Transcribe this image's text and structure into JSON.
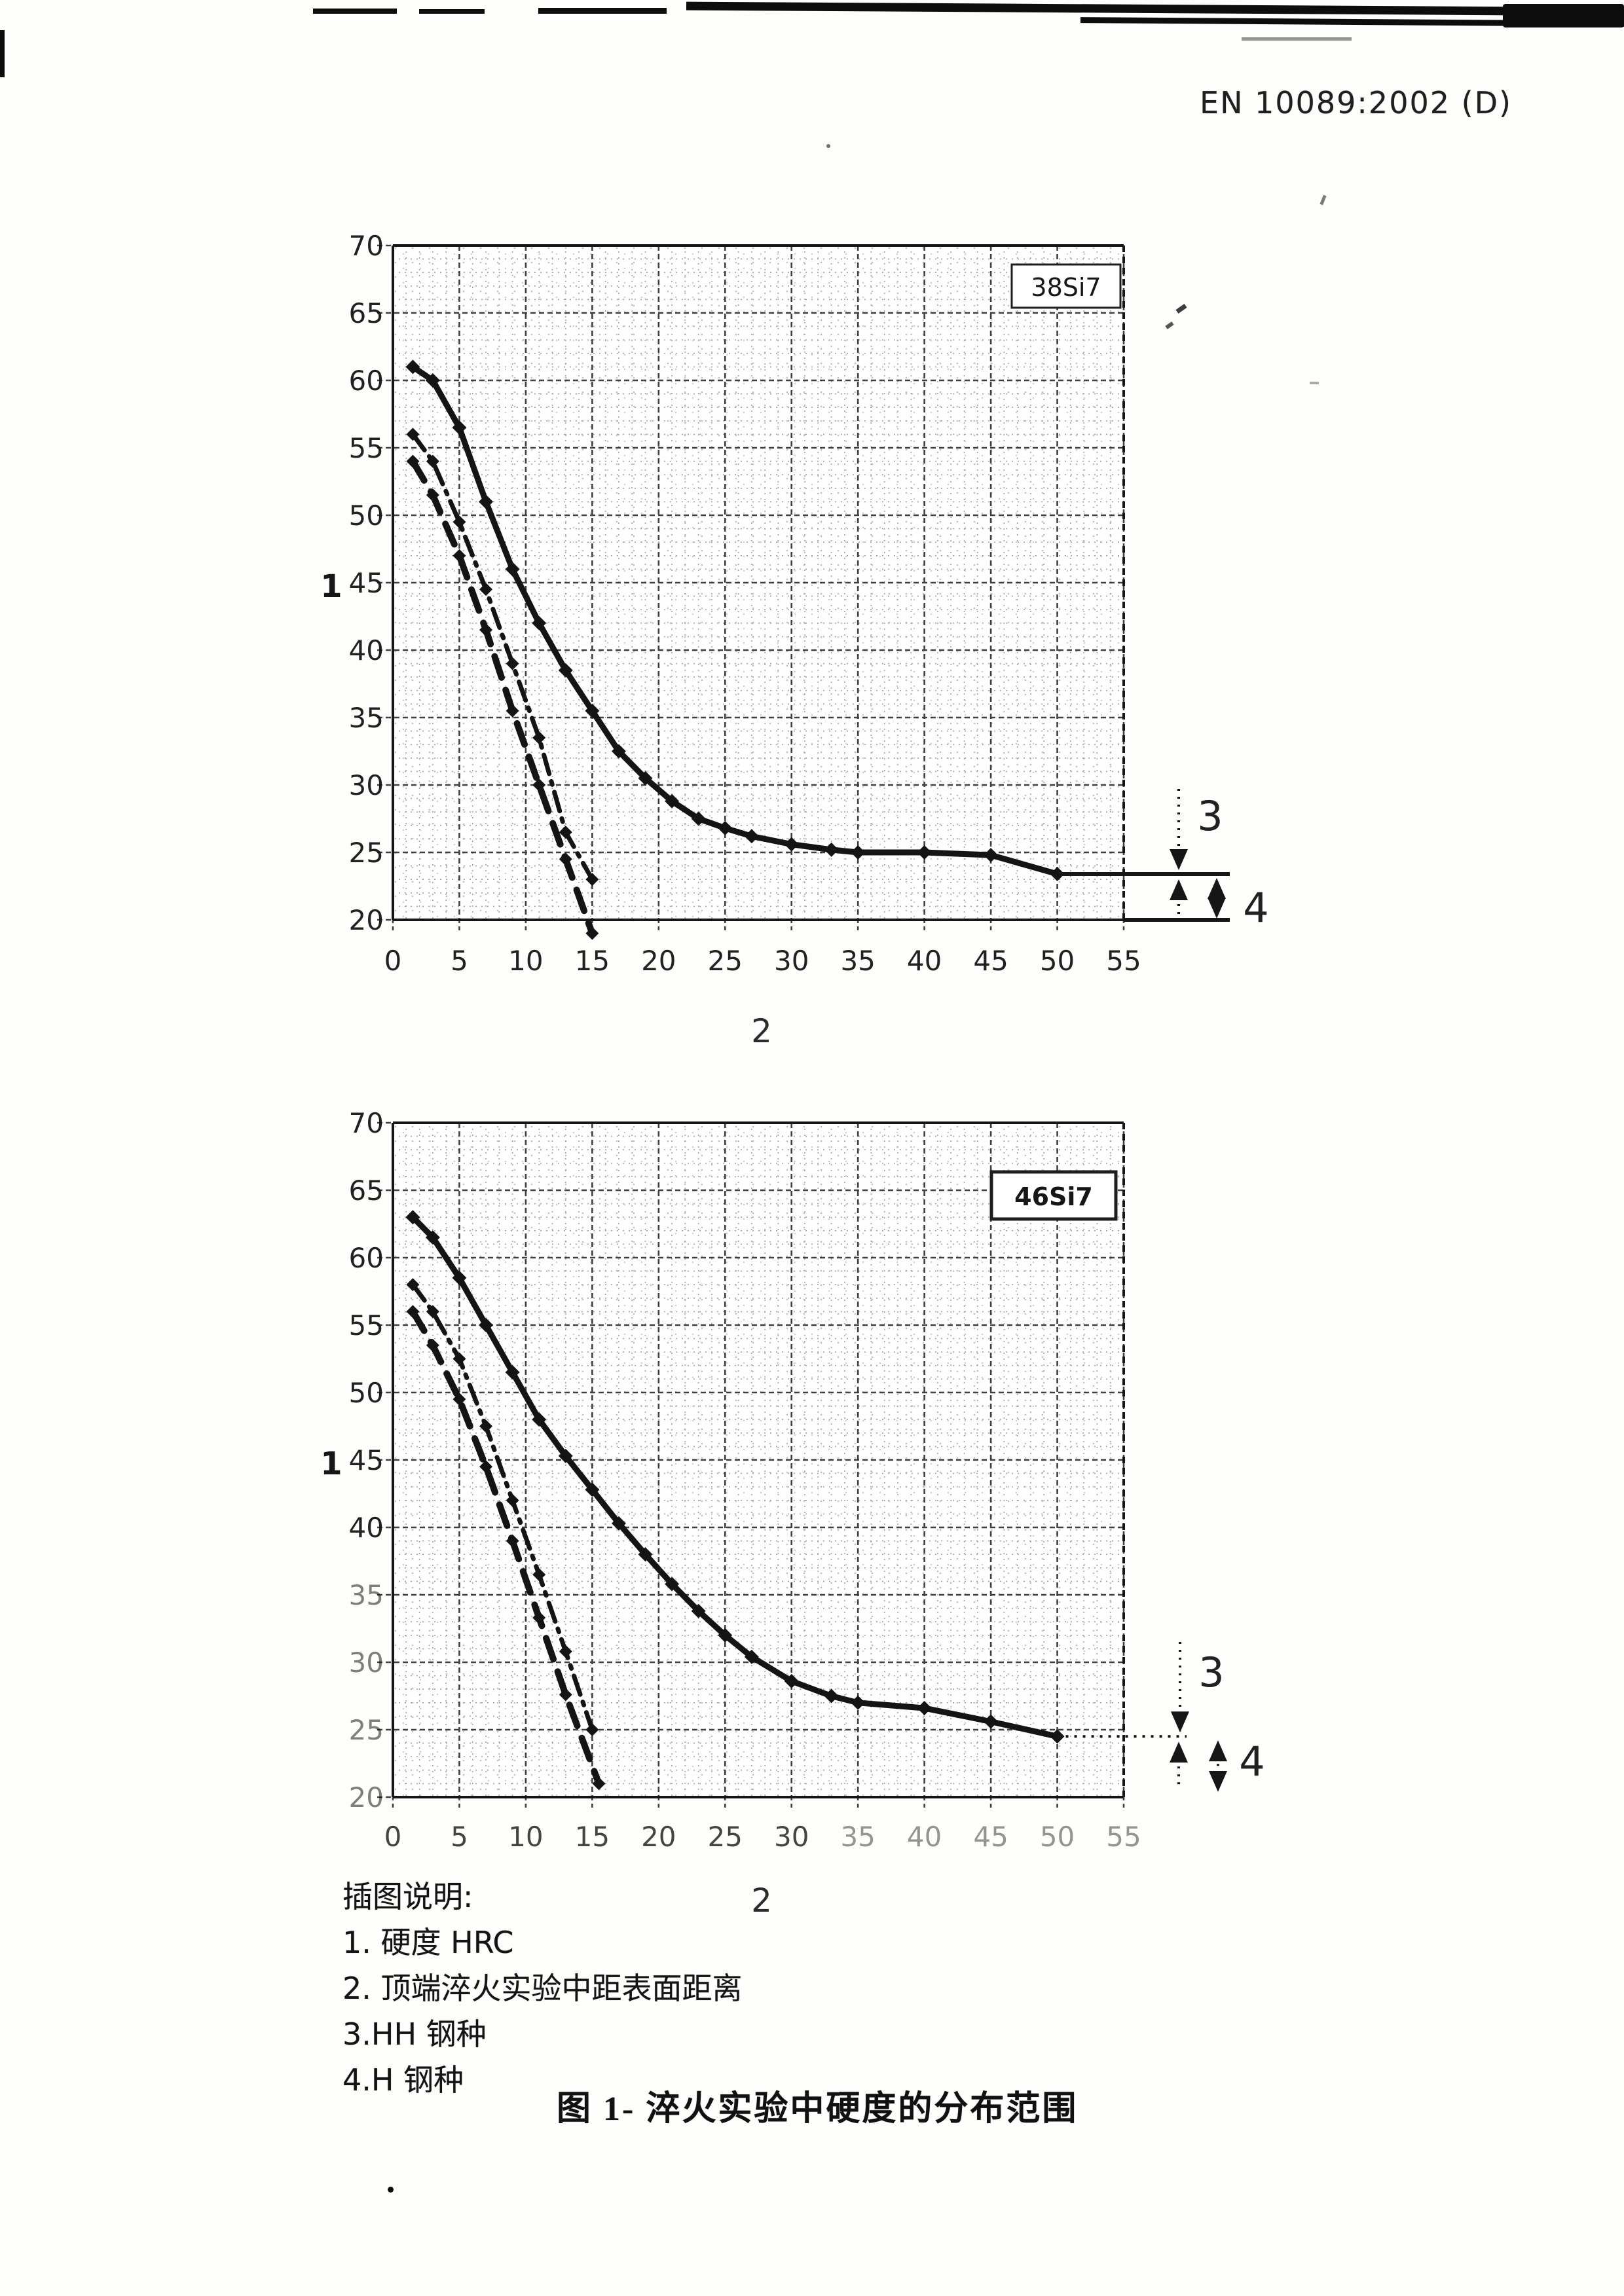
{
  "header": {
    "reference": "EN 10089:2002 (D)"
  },
  "legend": {
    "title": "插图说明:",
    "items": [
      "1. 硬度  HRC",
      "2. 顶端淬火实验中距表面距离",
      "3.HH 钢种",
      "4.H 钢种"
    ]
  },
  "caption": "图 1- 淬火实验中硬度的分布范围",
  "colors": {
    "ink": "#161616",
    "curve": "#141414",
    "grid_minor": "#a2a2a2",
    "grid_major": "#3f3f3f",
    "paper": "#fefefc"
  },
  "chart_data": [
    {
      "type": "line",
      "title": "38Si7",
      "grade": "38Si7",
      "y_axis_label": "1",
      "x_axis_label": "2",
      "xlim": [
        0,
        55
      ],
      "ylim": [
        20,
        70
      ],
      "grid": "on",
      "x_ticks": [
        0,
        5,
        10,
        15,
        20,
        25,
        30,
        35,
        40,
        45,
        50,
        55
      ],
      "y_ticks": [
        70,
        65,
        60,
        55,
        50,
        45,
        40,
        35,
        30,
        25,
        20
      ],
      "series": [
        {
          "name": "hardness-max",
          "style": "solid",
          "points": [
            [
              1.5,
              61
            ],
            [
              3,
              60
            ],
            [
              5,
              56.5
            ],
            [
              7,
              51
            ],
            [
              9,
              46
            ],
            [
              11,
              42
            ],
            [
              13,
              38.5
            ],
            [
              15,
              35.5
            ],
            [
              17,
              32.5
            ],
            [
              19,
              30.5
            ],
            [
              21,
              28.8
            ],
            [
              23,
              27.5
            ],
            [
              25,
              26.8
            ],
            [
              27,
              26.2
            ],
            [
              30,
              25.6
            ],
            [
              33,
              25.2
            ],
            [
              35,
              25
            ],
            [
              40,
              25
            ],
            [
              45,
              24.8
            ],
            [
              50,
              23.4
            ]
          ]
        },
        {
          "name": "hardness-min-HH",
          "style": "dashdot",
          "points": [
            [
              1.5,
              56
            ],
            [
              3,
              54
            ],
            [
              5,
              49.5
            ],
            [
              7,
              44.5
            ],
            [
              9,
              39
            ],
            [
              11,
              33.5
            ],
            [
              13,
              26.5
            ],
            [
              15,
              23
            ]
          ]
        },
        {
          "name": "hardness-min-H",
          "style": "dashed",
          "points": [
            [
              1.5,
              54
            ],
            [
              3,
              51.5
            ],
            [
              5,
              47
            ],
            [
              7,
              41.5
            ],
            [
              9,
              35.5
            ],
            [
              11,
              30
            ],
            [
              13,
              24.5
            ],
            [
              15,
              19
            ]
          ]
        }
      ],
      "annotations": [
        {
          "label": "3"
        },
        {
          "label": "4"
        }
      ]
    },
    {
      "type": "line",
      "title": "46Si7",
      "grade": "46Si7",
      "y_axis_label": "1",
      "x_axis_label": "2",
      "xlim": [
        0,
        55
      ],
      "ylim": [
        20,
        70
      ],
      "grid": "on",
      "x_ticks": [
        0,
        5,
        10,
        15,
        20,
        25,
        30,
        35,
        40,
        45,
        50,
        55
      ],
      "y_ticks": [
        70,
        65,
        60,
        55,
        50,
        45,
        40,
        35,
        30,
        25,
        20
      ],
      "series": [
        {
          "name": "hardness-max",
          "style": "solid",
          "points": [
            [
              1.5,
              63
            ],
            [
              3,
              61.5
            ],
            [
              5,
              58.5
            ],
            [
              7,
              55
            ],
            [
              9,
              51.5
            ],
            [
              11,
              48
            ],
            [
              13,
              45.3
            ],
            [
              15,
              42.8
            ],
            [
              17,
              40.3
            ],
            [
              19,
              38
            ],
            [
              21,
              35.8
            ],
            [
              23,
              33.8
            ],
            [
              25,
              32
            ],
            [
              27,
              30.4
            ],
            [
              30,
              28.6
            ],
            [
              33,
              27.5
            ],
            [
              35,
              27
            ],
            [
              40,
              26.6
            ],
            [
              45,
              25.6
            ],
            [
              50,
              24.5
            ]
          ]
        },
        {
          "name": "hardness-min-HH",
          "style": "dashdot",
          "points": [
            [
              1.5,
              58
            ],
            [
              3,
              56
            ],
            [
              5,
              52.5
            ],
            [
              7,
              47.5
            ],
            [
              9,
              42
            ],
            [
              11,
              36.5
            ],
            [
              13,
              30.8
            ],
            [
              15,
              25
            ]
          ]
        },
        {
          "name": "hardness-min-H",
          "style": "dashed",
          "points": [
            [
              1.5,
              56
            ],
            [
              3,
              53.5
            ],
            [
              5,
              49.5
            ],
            [
              7,
              44.5
            ],
            [
              9,
              39
            ],
            [
              11,
              33.3
            ],
            [
              13,
              27.6
            ],
            [
              15.5,
              21
            ]
          ]
        }
      ],
      "annotations": [
        {
          "label": "3"
        },
        {
          "label": "4"
        }
      ]
    }
  ]
}
